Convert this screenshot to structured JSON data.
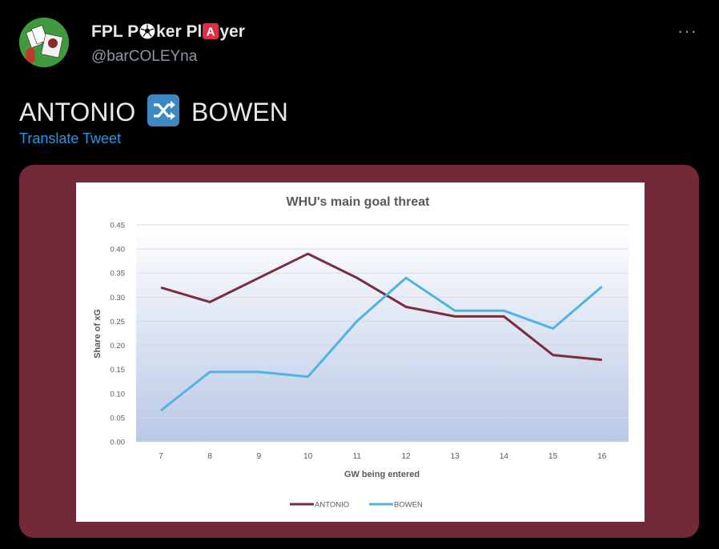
{
  "tweet": {
    "author": {
      "name_part1": "FPL P",
      "name_part2": "ker Pl",
      "name_part3": "yer",
      "name_emoji1": "soccer-ball-icon",
      "name_emoji2": "a-button-icon",
      "handle": "@barCOLEYna"
    },
    "text_part1": "ANTONIO",
    "text_emoji": "shuffle-icon",
    "text_part2": "BOWEN",
    "translate_label": "Translate Tweet",
    "more_label": "···"
  },
  "colors": {
    "background": "#000000",
    "media_frame": "#722a3a",
    "link": "#1d9bf0",
    "antonio_line": "#7b2c3f",
    "bowen_line": "#4fb3e6"
  },
  "chart_data": {
    "type": "line",
    "title": "WHU's main goal threat",
    "xlabel": "GW being entered",
    "ylabel": "Share of xG",
    "categories": [
      "7",
      "8",
      "9",
      "10",
      "11",
      "12",
      "13",
      "14",
      "15",
      "16"
    ],
    "y_ticks": [
      "0.00",
      "0.05",
      "0.10",
      "0.15",
      "0.20",
      "0.25",
      "0.30",
      "0.35",
      "0.40",
      "0.45"
    ],
    "ylim": [
      0,
      0.45
    ],
    "grid": true,
    "legend_position": "bottom",
    "series": [
      {
        "name": "ANTONIO",
        "color": "#7b2c3f",
        "values": [
          0.32,
          0.29,
          0.34,
          0.39,
          0.34,
          0.28,
          0.26,
          0.26,
          0.18,
          0.17
        ]
      },
      {
        "name": "BOWEN",
        "color": "#4fb3e6",
        "values": [
          0.065,
          0.145,
          0.145,
          0.135,
          0.25,
          0.34,
          0.272,
          0.272,
          0.235,
          0.322
        ]
      }
    ]
  }
}
